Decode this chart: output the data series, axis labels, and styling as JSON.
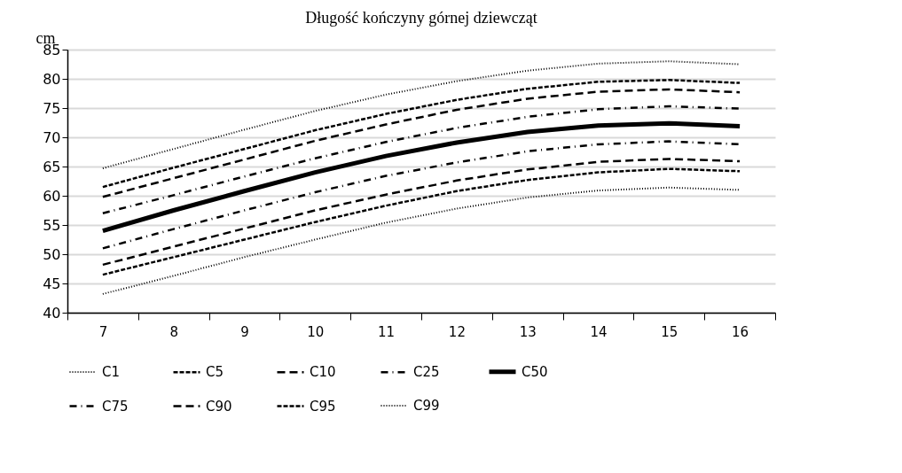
{
  "chart_data": {
    "type": "line",
    "title": "Długość kończyny  górnej dziewcząt",
    "ylabel": "cm",
    "categories": [
      "7",
      "8",
      "9",
      "10",
      "11",
      "12",
      "13",
      "14",
      "15",
      "16"
    ],
    "ylim": [
      40,
      85
    ],
    "yticks": [
      40,
      45,
      50,
      55,
      60,
      65,
      70,
      75,
      80,
      85
    ],
    "grid": "y",
    "legend": "bottom",
    "marker": "none",
    "series": [
      {
        "name": "C1",
        "color": "#000000",
        "line_style": "dotted",
        "values": [
          43.2,
          46.3,
          49.5,
          52.5,
          55.4,
          57.8,
          59.7,
          60.9,
          61.4,
          61.0
        ]
      },
      {
        "name": "C5",
        "color": "#000000",
        "line_style": "dashed",
        "values": [
          46.5,
          49.5,
          52.5,
          55.5,
          58.3,
          60.8,
          62.7,
          64.0,
          64.6,
          64.2
        ]
      },
      {
        "name": "C10",
        "color": "#000000",
        "line_style": "longdash",
        "values": [
          48.2,
          51.3,
          54.4,
          57.5,
          60.2,
          62.6,
          64.5,
          65.8,
          66.3,
          65.9
        ]
      },
      {
        "name": "C25",
        "color": "#000000",
        "line_style": "dashdot",
        "values": [
          51.0,
          54.3,
          57.5,
          60.6,
          63.4,
          65.7,
          67.6,
          68.8,
          69.3,
          68.8
        ]
      },
      {
        "name": "C50",
        "color": "#000000",
        "line_style": "solid",
        "values": [
          54.0,
          57.5,
          60.8,
          64.0,
          66.8,
          69.1,
          70.9,
          72.0,
          72.4,
          71.9
        ]
      },
      {
        "name": "C75",
        "color": "#000000",
        "line_style": "dashdot",
        "values": [
          57.0,
          60.1,
          63.3,
          66.4,
          69.2,
          71.6,
          73.5,
          74.8,
          75.3,
          74.9
        ]
      },
      {
        "name": "C90",
        "color": "#000000",
        "line_style": "longdash",
        "values": [
          59.8,
          63.0,
          66.2,
          69.4,
          72.2,
          74.7,
          76.6,
          77.8,
          78.2,
          77.7
        ]
      },
      {
        "name": "C95",
        "color": "#000000",
        "line_style": "dashed",
        "values": [
          61.5,
          64.8,
          68.0,
          71.2,
          74.0,
          76.4,
          78.3,
          79.5,
          79.8,
          79.3
        ]
      },
      {
        "name": "C99",
        "color": "#000000",
        "line_style": "dotted",
        "values": [
          64.7,
          68.0,
          71.3,
          74.5,
          77.3,
          79.6,
          81.4,
          82.6,
          83.0,
          82.5
        ]
      }
    ]
  }
}
